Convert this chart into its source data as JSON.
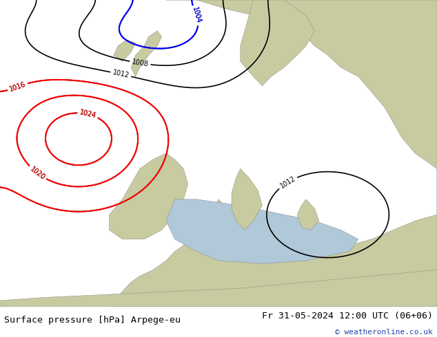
{
  "title_left": "Surface pressure [hPa] Arpege-eu",
  "title_right": "Fr 31-05-2024 12:00 UTC (06+06)",
  "copyright": "© weatheronline.co.uk",
  "bg_color": "#c8cba0",
  "land_color": "#c8cba0",
  "sea_color": "#b0c8d8",
  "fig_width": 6.34,
  "fig_height": 4.9,
  "dpi": 100,
  "bottom_bar_color": "#e8e8e8",
  "bottom_bar_height": 0.09,
  "title_fontsize": 9.5,
  "copyright_fontsize": 8,
  "copyright_color": "#2244aa"
}
